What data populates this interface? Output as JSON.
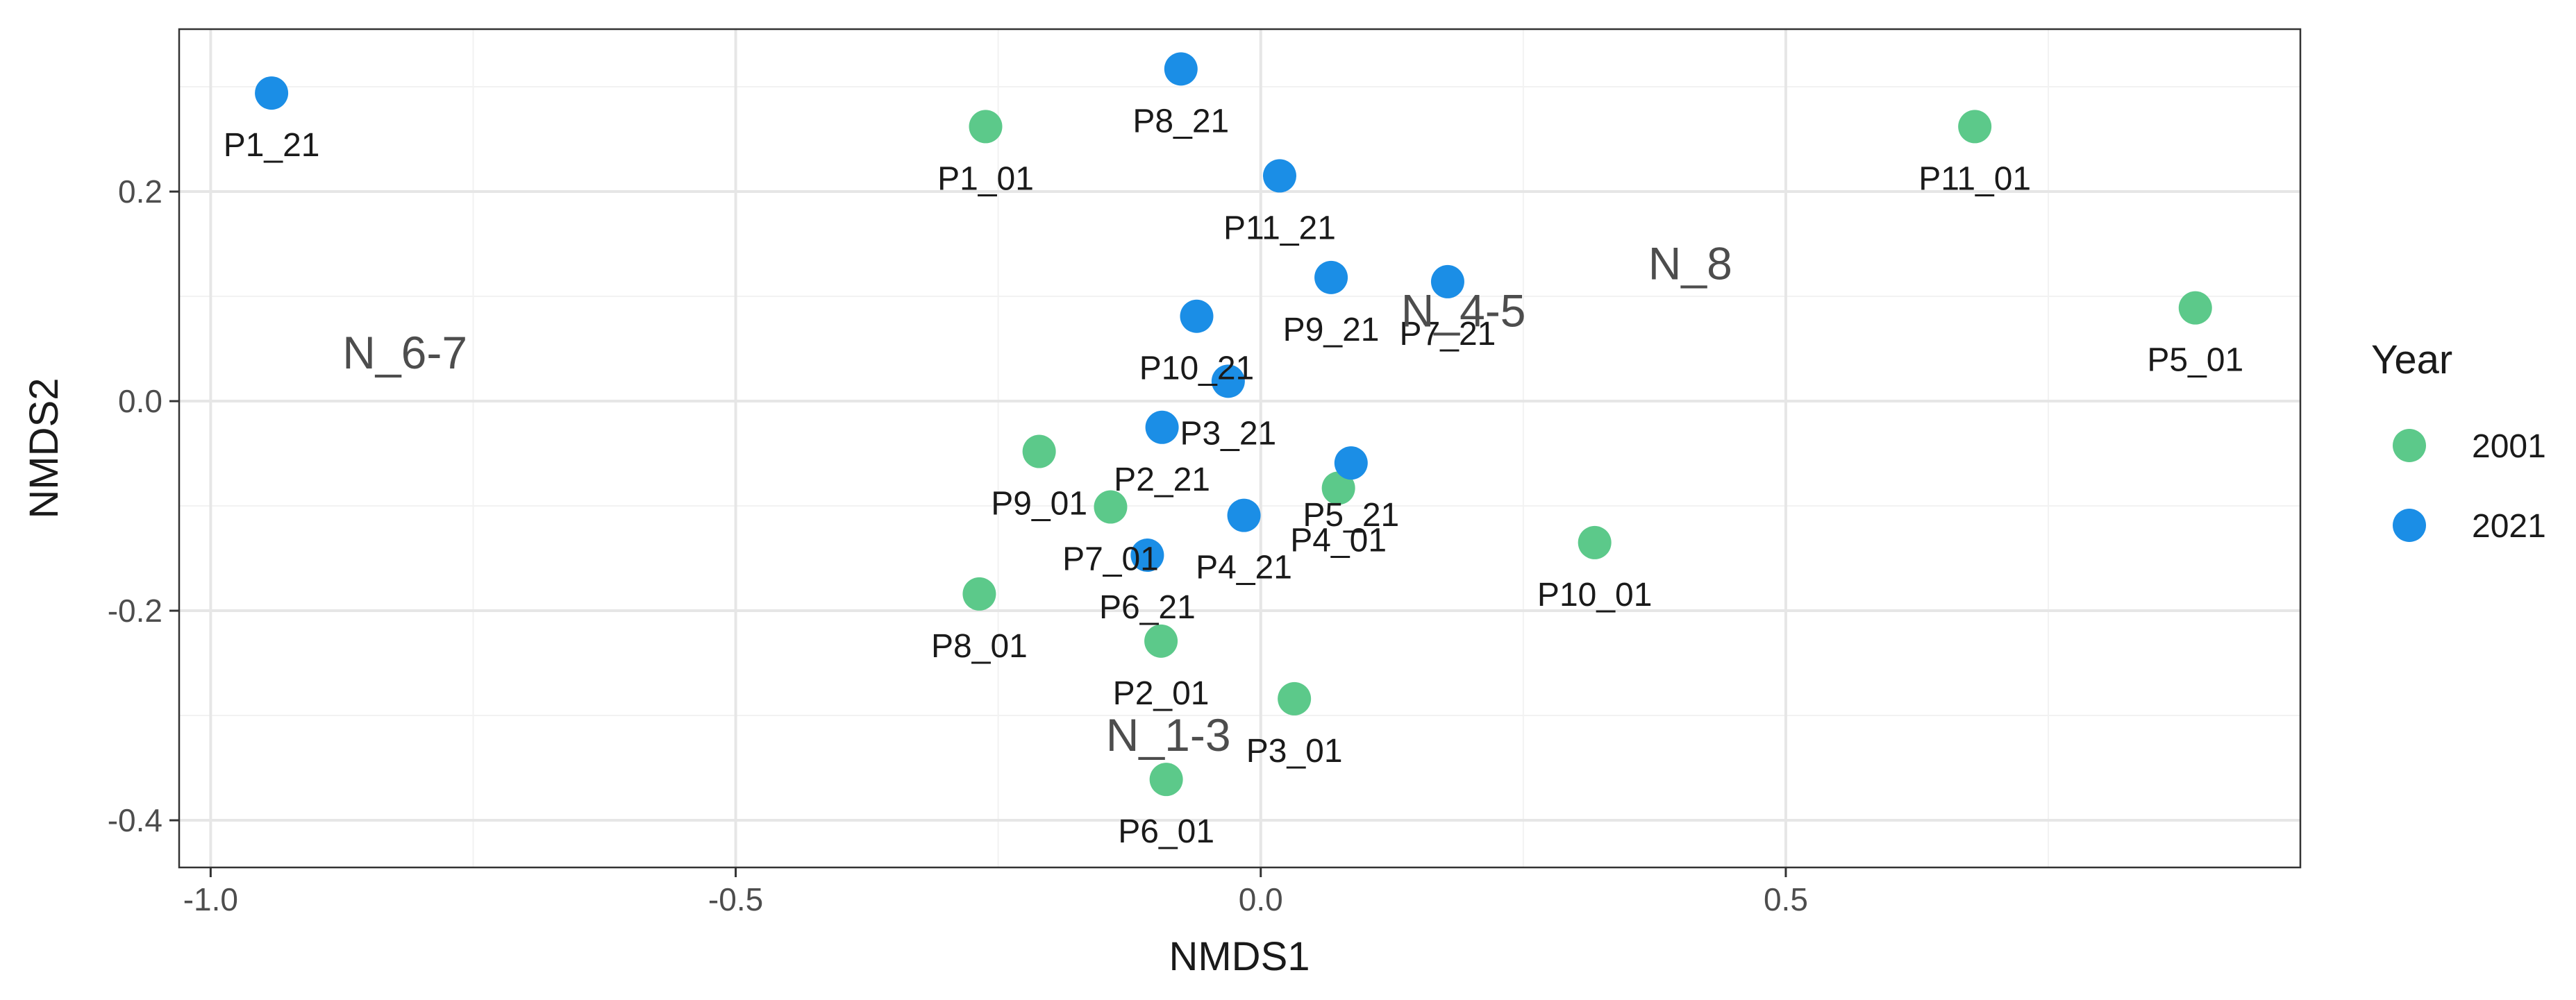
{
  "chart_data": {
    "type": "scatter",
    "title": "",
    "xlabel": "NMDS1",
    "ylabel": "NMDS2",
    "xlim": [
      -1.03,
      0.99
    ],
    "ylim": [
      -0.445,
      0.355
    ],
    "xticks": [
      -1.0,
      -0.5,
      0.0,
      0.5
    ],
    "xtick_labels": [
      "-1.0",
      "-0.5",
      "0.0",
      "0.5"
    ],
    "yticks": [
      -0.4,
      -0.2,
      0.0,
      0.2
    ],
    "ytick_labels": [
      "-0.4",
      "-0.2",
      "0.0",
      "0.2"
    ],
    "grid": true,
    "legend": {
      "title": "Year",
      "position": "right",
      "entries": [
        {
          "name": "2001",
          "color": "#5CC98A"
        },
        {
          "name": "2021",
          "color": "#1B8EE6"
        }
      ]
    },
    "series": [
      {
        "name": "2001",
        "color": "#5CC98A",
        "points": [
          {
            "label": "P1_01",
            "x": -0.262,
            "y": 0.262
          },
          {
            "label": "P11_01",
            "x": 0.68,
            "y": 0.262
          },
          {
            "label": "P5_01",
            "x": 0.89,
            "y": 0.089
          },
          {
            "label": "P9_01",
            "x": -0.211,
            "y": -0.048
          },
          {
            "label": "P7_01",
            "x": -0.143,
            "y": -0.101
          },
          {
            "label": "P8_01",
            "x": -0.268,
            "y": -0.184
          },
          {
            "label": "P2_01",
            "x": -0.095,
            "y": -0.229
          },
          {
            "label": "P4_01",
            "x": 0.074,
            "y": -0.083
          },
          {
            "label": "P10_01",
            "x": 0.318,
            "y": -0.135
          },
          {
            "label": "P3_01",
            "x": 0.032,
            "y": -0.284
          },
          {
            "label": "P6_01",
            "x": -0.09,
            "y": -0.361
          }
        ]
      },
      {
        "name": "2021",
        "color": "#1B8EE6",
        "points": [
          {
            "label": "P1_21",
            "x": -0.942,
            "y": 0.294
          },
          {
            "label": "P8_21",
            "x": -0.076,
            "y": 0.317
          },
          {
            "label": "P11_21",
            "x": 0.018,
            "y": 0.215
          },
          {
            "label": "P9_21",
            "x": 0.067,
            "y": 0.118
          },
          {
            "label": "P7_21",
            "x": 0.178,
            "y": 0.114
          },
          {
            "label": "P10_21",
            "x": -0.061,
            "y": 0.081
          },
          {
            "label": "P3_21",
            "x": -0.031,
            "y": 0.019
          },
          {
            "label": "P2_21",
            "x": -0.094,
            "y": -0.025
          },
          {
            "label": "P5_21",
            "x": 0.086,
            "y": -0.059
          },
          {
            "label": "P4_21",
            "x": -0.016,
            "y": -0.109
          },
          {
            "label": "P6_21",
            "x": -0.108,
            "y": -0.147
          }
        ]
      }
    ],
    "group_labels": [
      {
        "text": "N_6-7",
        "x": -0.815,
        "y": 0.047
      },
      {
        "text": "N_4-5",
        "x": 0.193,
        "y": 0.087
      },
      {
        "text": "N_8",
        "x": 0.409,
        "y": 0.132
      },
      {
        "text": "N_1-3",
        "x": -0.088,
        "y": -0.318
      }
    ]
  }
}
